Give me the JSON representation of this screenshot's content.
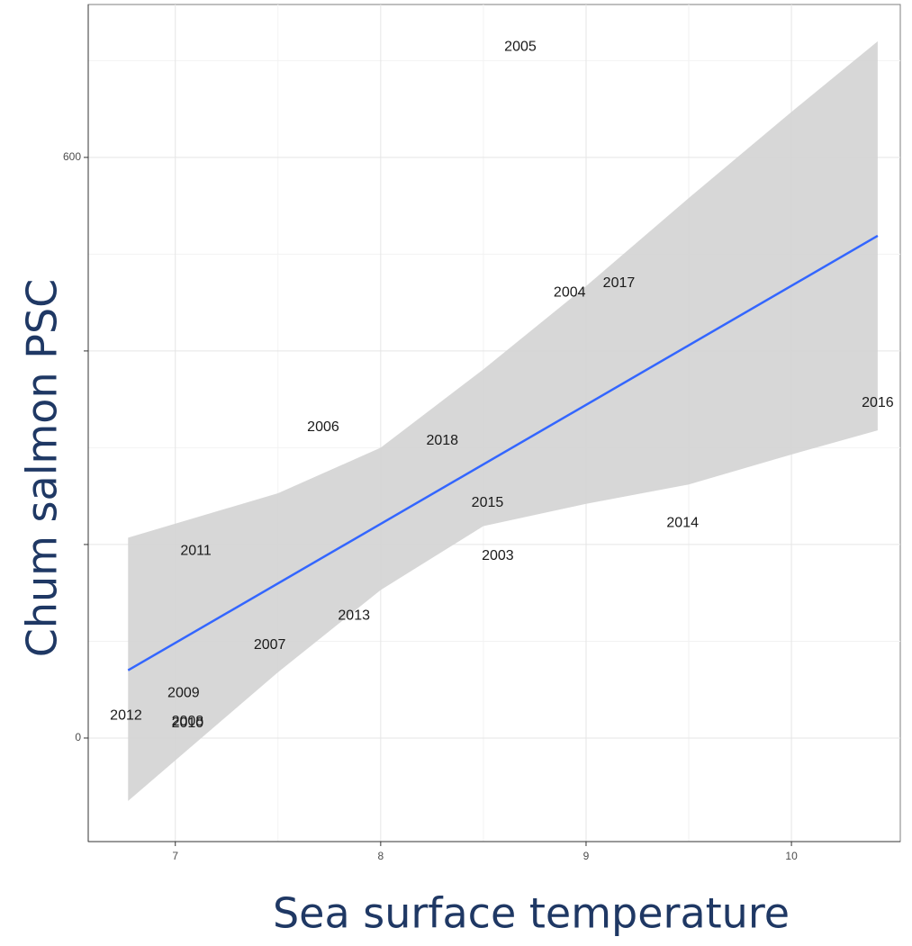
{
  "chart_data": {
    "type": "scatter",
    "x_label": "Sea surface temperature",
    "y_label": "Chum salmon PSC",
    "labels": [
      "2005",
      "2004",
      "2017",
      "2016",
      "2006",
      "2018",
      "2015",
      "2014",
      "2011",
      "2003",
      "2013",
      "2007",
      "2009",
      "2012",
      "2010",
      "2008"
    ],
    "x": [
      8.68,
      8.92,
      9.16,
      10.42,
      7.72,
      8.3,
      8.52,
      9.47,
      7.1,
      8.57,
      7.87,
      7.46,
      7.04,
      6.76,
      7.06,
      7.06
    ],
    "values": [
      714,
      460,
      470,
      346,
      321,
      307,
      243,
      222,
      193,
      188,
      126,
      96,
      46,
      23,
      15,
      17
    ],
    "fit": {
      "color": "#3366ff",
      "x": [
        6.77,
        10.42
      ],
      "values": [
        70,
        519
      ]
    },
    "band": {
      "color": "#d3d3d3",
      "x": [
        6.77,
        7.5,
        8.0,
        8.5,
        9.0,
        9.5,
        10.0,
        10.42
      ],
      "upper": [
        207,
        253,
        300,
        381,
        467,
        558,
        647,
        720
      ],
      "lower": [
        -65,
        68,
        153,
        219,
        242,
        262,
        293,
        318
      ]
    },
    "xlim": [
      6.576,
      10.53
    ],
    "ylim": [
      -107,
      758
    ],
    "xticks": [
      7,
      8,
      9,
      10
    ],
    "yticks": [
      0,
      200,
      400,
      600
    ],
    "grid": true
  }
}
